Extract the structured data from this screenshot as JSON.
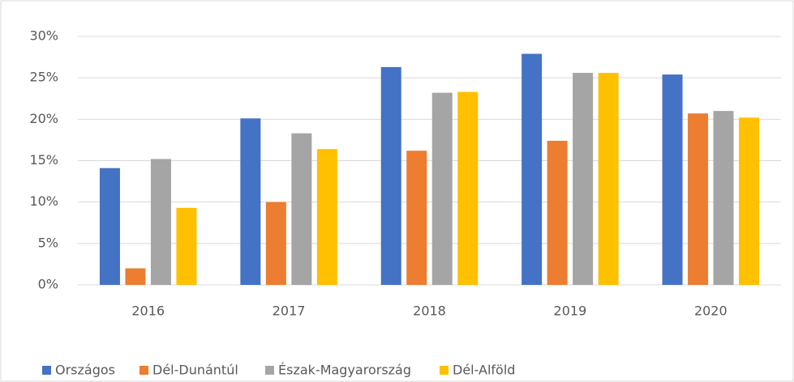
{
  "chart_data": {
    "type": "bar",
    "categories": [
      "2016",
      "2017",
      "2018",
      "2019",
      "2020"
    ],
    "series": [
      {
        "name": "Országos",
        "color": "#4472c4",
        "values": [
          14.1,
          20.1,
          26.3,
          27.9,
          25.4
        ]
      },
      {
        "name": "Dél-Dunántúl",
        "color": "#ed7d31",
        "values": [
          2.0,
          10.0,
          16.2,
          17.4,
          20.7
        ]
      },
      {
        "name": "Észak-Magyarország",
        "color": "#a5a5a5",
        "values": [
          15.2,
          18.3,
          23.2,
          25.6,
          21.0
        ]
      },
      {
        "name": "Dél-Alföld",
        "color": "#ffc000",
        "values": [
          9.3,
          16.4,
          23.3,
          25.6,
          20.2
        ]
      }
    ],
    "ylim": [
      0,
      30
    ],
    "yticks": [
      {
        "value": 0,
        "label": "0%"
      },
      {
        "value": 5,
        "label": "5%"
      },
      {
        "value": 10,
        "label": "10%"
      },
      {
        "value": 15,
        "label": "15%"
      },
      {
        "value": 20,
        "label": "20%"
      },
      {
        "value": 25,
        "label": "25%"
      },
      {
        "value": 30,
        "label": "30%"
      }
    ],
    "grid": true,
    "legend": "bottom"
  }
}
